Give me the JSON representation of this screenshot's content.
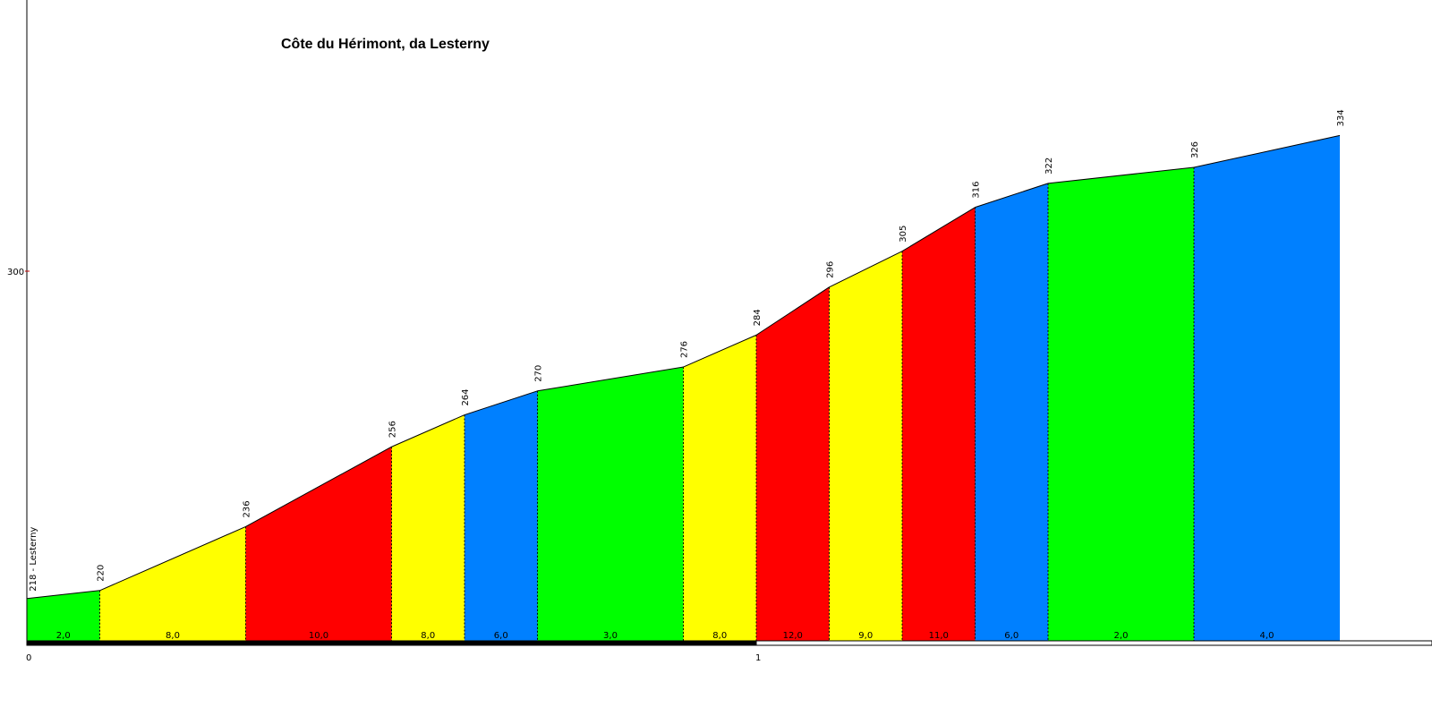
{
  "chart_data": {
    "type": "area",
    "title": "Côte du Hérimont, da Lesterny",
    "start_label": "218 - Lesterny",
    "y_ticks": [
      300
    ],
    "x_ticks": [
      0,
      1
    ],
    "xlim": [
      0,
      1.9
    ],
    "ylim": [
      206,
      362
    ],
    "segment_length_km": 0.1,
    "elevations": [
      218,
      220,
      236,
      256,
      264,
      270,
      276,
      284,
      296,
      305,
      316,
      322,
      326,
      334
    ],
    "elevation_labels": [
      "220",
      "236",
      "256",
      "264",
      "270",
      "276",
      "284",
      "296",
      "305",
      "316",
      "322",
      "326",
      "334"
    ],
    "segment_starts_km": [
      0,
      0.1,
      0.3,
      0.5,
      0.6,
      0.7,
      0.9,
      1.0,
      1.1,
      1.2,
      1.3,
      1.4,
      1.6
    ],
    "segment_ends_km": [
      0.1,
      0.3,
      0.5,
      0.6,
      0.7,
      0.9,
      1.0,
      1.1,
      1.2,
      1.3,
      1.4,
      1.6,
      1.8
    ],
    "gradient_labels": [
      "2,0",
      "8,0",
      "10,0",
      "8,0",
      "6,0",
      "3,0",
      "8,0",
      "12,0",
      "9,0",
      "11,0",
      "6,0",
      "2,0",
      "4,0"
    ],
    "segment_colors": [
      "#00ff00",
      "#ffff00",
      "#ff0000",
      "#ffff00",
      "#0080ff",
      "#00ff00",
      "#ffff00",
      "#ff0000",
      "#ffff00",
      "#ff0000",
      "#0080ff",
      "#00ff00",
      "#0080ff"
    ],
    "km_bar_colors": [
      "#000000",
      "#ffffff"
    ]
  }
}
